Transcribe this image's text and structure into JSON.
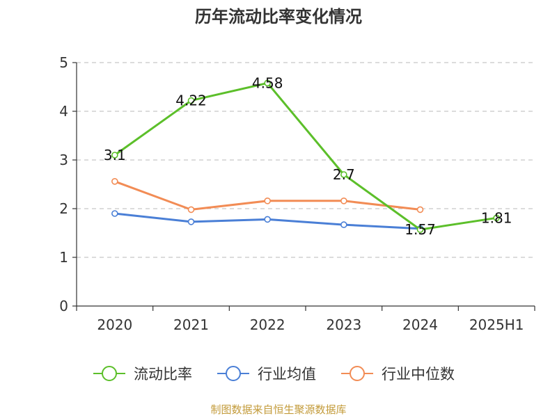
{
  "title": "历年流动比率变化情况",
  "source": "制图数据来自恒生聚源数据库",
  "chart_data": {
    "type": "line",
    "title": "历年流动比率变化情况",
    "categories": [
      "2020",
      "2021",
      "2022",
      "2023",
      "2024",
      "2025H1"
    ],
    "ylim": [
      0,
      5
    ],
    "yticks": [
      0,
      1,
      2,
      3,
      4,
      5
    ],
    "grid": true,
    "legend_position": "bottom",
    "series": [
      {
        "name": "流动比率",
        "color": "#5cbf2a",
        "values": [
          3.1,
          4.22,
          4.58,
          2.7,
          1.57,
          1.81
        ],
        "labels": [
          "3.1",
          "4.22",
          "4.58",
          "2.7",
          "1.57",
          "1.81"
        ]
      },
      {
        "name": "行业均值",
        "color": "#4a7fd6",
        "values": [
          1.9,
          1.73,
          1.78,
          1.67,
          1.59,
          null
        ]
      },
      {
        "name": "行业中位数",
        "color": "#f28c55",
        "values": [
          2.56,
          1.98,
          2.16,
          2.16,
          1.98,
          null
        ]
      }
    ]
  }
}
